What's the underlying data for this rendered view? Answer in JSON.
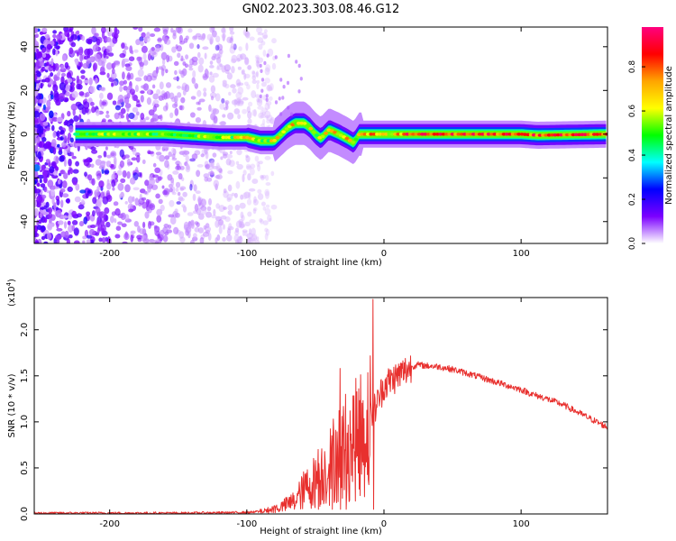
{
  "figure": {
    "title": "GN02.2023.303.08.46.G12"
  },
  "chart_data": [
    {
      "type": "heatmap",
      "xlabel": "Height of straight line (km)",
      "ylabel": "Frequency (Hz)",
      "xlim": [
        -255,
        163
      ],
      "ylim": [
        -50,
        49
      ],
      "xticks": [
        -200,
        -100,
        0,
        100
      ],
      "yticks": [
        -40,
        -20,
        0,
        20,
        40
      ],
      "ridge": [
        [
          -225,
          0
        ],
        [
          -160,
          0
        ],
        [
          -120,
          -1.5
        ],
        [
          -100,
          -1.5
        ],
        [
          -90,
          -3
        ],
        [
          -80,
          -3
        ],
        [
          -75,
          0
        ],
        [
          -70,
          3
        ],
        [
          -65,
          5
        ],
        [
          -58,
          5
        ],
        [
          -54,
          3
        ],
        [
          -50,
          0
        ],
        [
          -46,
          -2
        ],
        [
          -40,
          2
        ],
        [
          -33,
          0
        ],
        [
          -27,
          -2
        ],
        [
          -22,
          -4
        ],
        [
          -18,
          0
        ],
        [
          0,
          0
        ],
        [
          40,
          0
        ],
        [
          100,
          0
        ],
        [
          112,
          -0.5
        ],
        [
          163,
          0
        ]
      ],
      "noise_extent_km": [
        -255,
        -95
      ],
      "colorbar": {
        "label": "Normalized spectral amplitude",
        "range": [
          0,
          0.98
        ],
        "ticks": [
          0.0,
          0.2,
          0.4,
          0.6,
          0.8
        ],
        "tick_labels": [
          "0.0",
          "0.2",
          "0.4",
          "0.6",
          "0.8"
        ],
        "colors": [
          "#ffffff",
          "#7b00ff",
          "#0000ff",
          "#00ffff",
          "#00ff00",
          "#ffff00",
          "#ffa500",
          "#ff0000",
          "#ff007f"
        ]
      }
    },
    {
      "type": "line",
      "xlabel": "Height of straight line (km)",
      "ylabel": "SNR (10 * v/v)",
      "y_multiplier_label": "(x10^4)",
      "y_multiplier_text": "(x10",
      "y_multiplier_exp": "4",
      "xlim": [
        -255,
        163
      ],
      "ylim": [
        0,
        2.35
      ],
      "xticks": [
        -200,
        -100,
        0,
        100
      ],
      "yticks": [
        0.0,
        0.5,
        1.0,
        1.5,
        2.0
      ],
      "ytick_labels": [
        "0.0",
        "0.5",
        "1.0",
        "1.5",
        "2.0"
      ],
      "color": "#e8302e",
      "series": [
        {
          "x": [
            -255,
            -200,
            -150,
            -110,
            -95,
            -85,
            -75,
            -65,
            -58,
            -52,
            -46,
            -40,
            -35,
            -30,
            -25,
            -20,
            -15,
            -10,
            -5,
            0,
            10,
            20,
            25,
            30,
            40,
            50,
            60,
            80,
            100,
            110,
            115,
            130,
            163
          ],
          "y": [
            0.01,
            0.01,
            0.01,
            0.015,
            0.02,
            0.04,
            0.08,
            0.15,
            0.28,
            0.35,
            0.45,
            0.55,
            0.7,
            0.75,
            0.8,
            0.85,
            0.95,
            1.05,
            1.2,
            1.4,
            1.5,
            1.6,
            1.62,
            1.61,
            1.6,
            1.57,
            1.53,
            1.44,
            1.35,
            1.29,
            1.27,
            1.19,
            0.94
          ]
        }
      ],
      "peaks": [
        {
          "x": -8,
          "y": 2.33
        },
        {
          "x": -32,
          "y": 1.58
        },
        {
          "x": -38,
          "y": 0.85
        },
        {
          "x": -28,
          "y": 1.3
        },
        {
          "x": -48,
          "y": 0.7
        }
      ]
    }
  ]
}
